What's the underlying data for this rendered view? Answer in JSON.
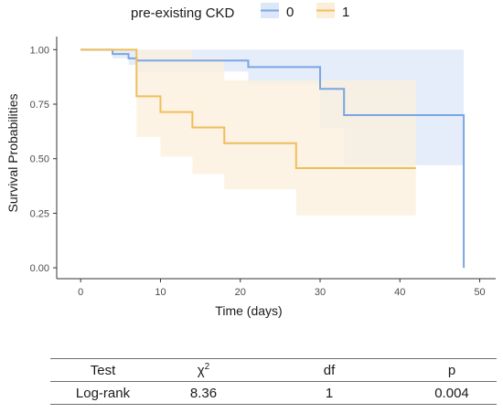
{
  "chart_data": {
    "type": "line",
    "step": true,
    "xlabel": "Time (days)",
    "ylabel": "Survival Probabilities",
    "xlim": [
      -3,
      52
    ],
    "ylim": [
      -0.05,
      1.06
    ],
    "x_ticks": [
      0,
      10,
      20,
      30,
      40,
      50
    ],
    "y_ticks": [
      0.0,
      0.25,
      0.5,
      0.75,
      1.0
    ],
    "y_tick_labels": [
      "0.00",
      "0.25",
      "0.50",
      "0.75",
      "1.00"
    ],
    "grid": false,
    "legend": {
      "title": "pre-existing CKD",
      "position": "top",
      "entries": [
        "0",
        "1"
      ]
    },
    "series": [
      {
        "name": "0",
        "color": "#7aa6e3",
        "band_color": "#dce7f8",
        "x": [
          0,
          4,
          6,
          7,
          21,
          30,
          33,
          48,
          48
        ],
        "y": [
          1.0,
          0.98,
          0.96,
          0.95,
          0.92,
          0.82,
          0.7,
          0.7,
          0.0
        ],
        "ci_lower": [
          1.0,
          0.96,
          0.93,
          0.9,
          0.84,
          0.64,
          0.47,
          0.47,
          0.47
        ],
        "ci_upper": [
          1.0,
          1.0,
          1.0,
          1.0,
          1.0,
          1.0,
          1.0,
          1.0,
          1.0
        ]
      },
      {
        "name": "1",
        "color": "#efbe5b",
        "band_color": "#fbefdc",
        "x": [
          0,
          7,
          10,
          14,
          18,
          27,
          42
        ],
        "y": [
          1.0,
          0.786,
          0.714,
          0.643,
          0.571,
          0.457,
          0.457
        ],
        "ci_lower": [
          1.0,
          0.6,
          0.51,
          0.43,
          0.36,
          0.24,
          0.24
        ],
        "ci_upper": [
          1.0,
          1.0,
          1.0,
          0.96,
          0.86,
          0.86,
          0.86
        ]
      }
    ],
    "stats_table": {
      "headers": [
        "Test",
        "χ2",
        "df",
        "p"
      ],
      "rows": [
        [
          "Log-rank",
          "8.36",
          "1",
          "0.004"
        ]
      ]
    }
  },
  "table": {
    "h_test": "Test",
    "h_chi": "χ",
    "h_chi_sup": "2",
    "h_df": "df",
    "h_p": "p",
    "r_test": "Log-rank",
    "r_chi": "8.36",
    "r_df": "1",
    "r_p": "0.004"
  }
}
